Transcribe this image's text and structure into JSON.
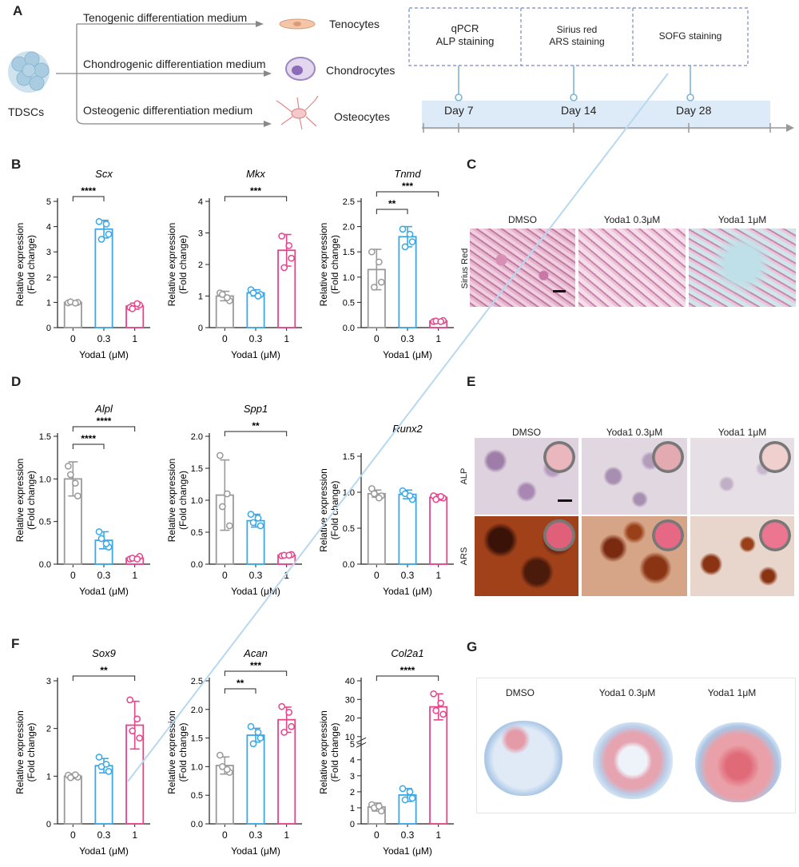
{
  "panels": {
    "A": "A",
    "B": "B",
    "C": "C",
    "D": "D",
    "E": "E",
    "F": "F",
    "G": "G"
  },
  "panel_a": {
    "source": "TDSCs",
    "media": [
      "Tenogenic differentiation medium",
      "Chondrogenic differentiation medium",
      "Osteogenic differentiation medium"
    ],
    "cells": [
      "Tenocytes",
      "Chondrocytes",
      "Osteocytes"
    ],
    "assays": [
      "qPCR",
      "ALP staining",
      "Sirius red",
      "ARS staining",
      "SOFG staining"
    ],
    "days": [
      "Day 7",
      "Day 14",
      "Day 28"
    ]
  },
  "panel_c": {
    "conditions": [
      "DMSO",
      "Yoda1 0.3μM",
      "Yoda1 1μM"
    ],
    "row_label": "Sirius Red"
  },
  "panel_e": {
    "conditions": [
      "DMSO",
      "Yoda1 0.3μM",
      "Yoda1 1μM"
    ],
    "row_labels": [
      "ALP",
      "ARS"
    ]
  },
  "panel_g": {
    "conditions": [
      "DMSO",
      "Yoda1 0.3μM",
      "Yoda1 1μM"
    ]
  },
  "colors": {
    "c0": "#9a9a9a",
    "c03": "#3aa8e8",
    "c1": "#e8448c"
  },
  "chart_data": [
    {
      "type": "bar",
      "title": "Scx",
      "categories": [
        "0",
        "0.3",
        "1"
      ],
      "values": [
        1.0,
        3.9,
        0.85
      ],
      "errors": [
        0.05,
        0.35,
        0.12
      ],
      "points": [
        [
          0.98,
          1.0,
          1.02,
          0.97
        ],
        [
          4.2,
          3.7,
          3.5,
          4.1
        ],
        [
          0.8,
          0.9,
          0.75,
          0.95
        ]
      ],
      "ylabel": "Relative expression\n(Fold change)",
      "xlabel": "Yoda1 (μM)",
      "ylim": [
        0,
        5
      ],
      "yticks": [
        "0",
        "1",
        "2",
        "3",
        "4",
        "5"
      ],
      "sig": [
        {
          "from": 0,
          "to": 1,
          "label": "****",
          "level": 0
        }
      ]
    },
    {
      "type": "bar",
      "title": "Mkx",
      "categories": [
        "0",
        "0.3",
        "1"
      ],
      "values": [
        1.0,
        1.1,
        2.45
      ],
      "errors": [
        0.15,
        0.1,
        0.5
      ],
      "points": [
        [
          1.1,
          0.85,
          1.05,
          0.95
        ],
        [
          1.2,
          1.05,
          1.1,
          1.0
        ],
        [
          2.9,
          2.2,
          1.9,
          2.6
        ]
      ],
      "ylabel": "Relative expression\n(Fold change)",
      "xlabel": "Yoda1 (μM)",
      "ylim": [
        0,
        4
      ],
      "yticks": [
        "0",
        "1",
        "2",
        "3",
        "4"
      ],
      "sig": [
        {
          "from": 0,
          "to": 2,
          "label": "***",
          "level": 0
        }
      ]
    },
    {
      "type": "bar",
      "title": "Tnmd",
      "categories": [
        "0",
        "0.3",
        "1"
      ],
      "values": [
        1.15,
        1.8,
        0.13
      ],
      "errors": [
        0.4,
        0.2,
        0.02
      ],
      "points": [
        [
          1.5,
          0.9,
          0.8,
          1.3
        ],
        [
          1.95,
          1.7,
          1.6,
          1.85
        ],
        [
          0.12,
          0.14,
          0.13,
          0.12
        ]
      ],
      "ylabel": "Relative expression\n(Fold change)",
      "xlabel": "Yoda1 (μM)",
      "ylim": [
        0,
        2.5
      ],
      "yticks": [
        "0.0",
        "0.5",
        "1.0",
        "1.5",
        "2.0",
        "2.5"
      ],
      "sig": [
        {
          "from": 0,
          "to": 1,
          "label": "**",
          "level": 0
        },
        {
          "from": 0,
          "to": 2,
          "label": "***",
          "level": 1
        }
      ]
    },
    {
      "type": "bar",
      "title": "Alpl",
      "categories": [
        "0",
        "0.3",
        "1"
      ],
      "values": [
        1.0,
        0.28,
        0.07
      ],
      "errors": [
        0.2,
        0.1,
        0.02
      ],
      "points": [
        [
          1.15,
          0.8,
          1.05,
          0.95
        ],
        [
          0.38,
          0.2,
          0.3,
          0.24
        ],
        [
          0.06,
          0.09,
          0.07,
          0.06
        ]
      ],
      "ylabel": "Relative expression\n(Fold change)",
      "xlabel": "Yoda1 (μM)",
      "ylim": [
        0,
        1.5
      ],
      "yticks": [
        "0.0",
        "0.5",
        "1.0",
        "1.5"
      ],
      "sig": [
        {
          "from": 0,
          "to": 1,
          "label": "****",
          "level": 0
        },
        {
          "from": 0,
          "to": 2,
          "label": "****",
          "level": 1
        }
      ]
    },
    {
      "type": "bar",
      "title": "Spp1",
      "categories": [
        "0",
        "0.3",
        "1"
      ],
      "values": [
        1.08,
        0.68,
        0.14
      ],
      "errors": [
        0.55,
        0.1,
        0.02
      ],
      "points": [
        [
          1.7,
          0.6,
          0.9,
          1.1
        ],
        [
          0.78,
          0.6,
          0.65,
          0.72
        ],
        [
          0.13,
          0.15,
          0.14,
          0.14
        ]
      ],
      "ylabel": "Relative expression\n(Fold change)",
      "xlabel": "Yoda1 (μM)",
      "ylim": [
        0,
        2.0
      ],
      "yticks": [
        "0.0",
        "0.5",
        "1.0",
        "1.5",
        "2.0"
      ],
      "sig": [
        {
          "from": 0,
          "to": 2,
          "label": "**",
          "level": 0
        }
      ]
    },
    {
      "type": "bar",
      "title": "Runx2",
      "categories": [
        "0",
        "0.3",
        "1"
      ],
      "values": [
        0.98,
        0.97,
        0.93
      ],
      "errors": [
        0.05,
        0.06,
        0.04
      ],
      "points": [
        [
          1.05,
          0.95,
          0.98,
          0.92
        ],
        [
          1.02,
          0.9,
          0.98,
          0.95
        ],
        [
          0.95,
          0.92,
          0.9,
          0.94
        ]
      ],
      "ylabel": "Relative expression\n(Fold change)",
      "xlabel": "Yoda1 (μM)",
      "ylim": [
        0,
        1.5
      ],
      "yticks": [
        "0.0",
        "0.5",
        "1.0",
        "1.5"
      ],
      "sig": []
    },
    {
      "type": "bar",
      "title": "Sox9",
      "categories": [
        "0",
        "0.3",
        "1"
      ],
      "values": [
        1.0,
        1.22,
        2.07
      ],
      "errors": [
        0.05,
        0.15,
        0.5
      ],
      "points": [
        [
          1.02,
          0.98,
          0.97,
          1.03
        ],
        [
          1.4,
          1.1,
          1.2,
          1.25
        ],
        [
          2.6,
          1.8,
          1.95,
          2.2
        ]
      ],
      "ylabel": "Relative expression\n(Fold change)",
      "xlabel": "Yoda1 (μM)",
      "ylim": [
        0,
        3
      ],
      "yticks": [
        "0",
        "1",
        "2",
        "3"
      ],
      "sig": [
        {
          "from": 0,
          "to": 2,
          "label": "**",
          "level": 0
        }
      ]
    },
    {
      "type": "bar",
      "title": "Acan",
      "categories": [
        "0",
        "0.3",
        "1"
      ],
      "values": [
        1.02,
        1.55,
        1.82
      ],
      "errors": [
        0.15,
        0.12,
        0.22
      ],
      "points": [
        [
          1.2,
          0.9,
          1.0,
          0.95
        ],
        [
          1.7,
          1.5,
          1.4,
          1.6
        ],
        [
          2.05,
          1.7,
          1.6,
          1.95
        ]
      ],
      "ylabel": "Relative expression\n(Fold change)",
      "xlabel": "Yoda1 (μM)",
      "ylim": [
        0,
        2.5
      ],
      "yticks": [
        "0.0",
        "0.5",
        "1.0",
        "1.5",
        "2.0",
        "2.5"
      ],
      "sig": [
        {
          "from": 0,
          "to": 1,
          "label": "**",
          "level": 0
        },
        {
          "from": 0,
          "to": 2,
          "label": "***",
          "level": 1
        }
      ]
    },
    {
      "type": "bar",
      "title": "Col2a1",
      "categories": [
        "0",
        "0.3",
        "1"
      ],
      "values": [
        1.05,
        1.8,
        26
      ],
      "errors": [
        0.25,
        0.4,
        7
      ],
      "points": [
        [
          1.2,
          0.8,
          1.0,
          1.1
        ],
        [
          2.2,
          1.6,
          1.5,
          2.0
        ],
        [
          33,
          22,
          24,
          28
        ]
      ],
      "ylabel": "Relative expression\n(Fold change)",
      "xlabel": "Yoda1 (μM)",
      "ylim": [
        0,
        40
      ],
      "yticks": [
        "0",
        "1",
        "2",
        "3",
        "4",
        "5",
        "10",
        "20",
        "30",
        "40"
      ],
      "sig": [
        {
          "from": 0,
          "to": 2,
          "label": "****",
          "level": 0
        }
      ]
    }
  ]
}
